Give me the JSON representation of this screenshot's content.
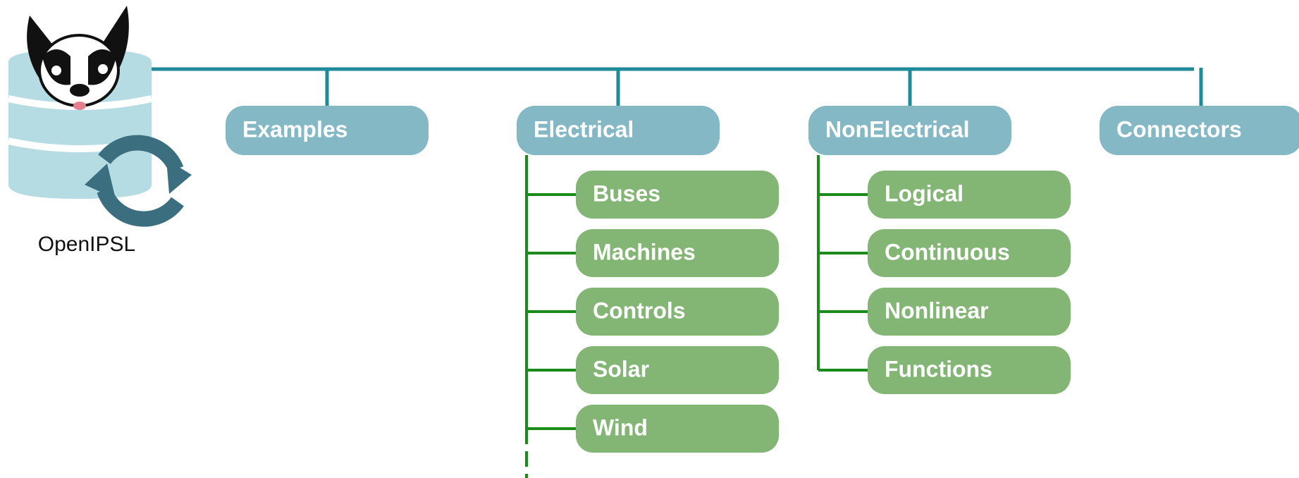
{
  "root": {
    "label": "OpenIPSL"
  },
  "nodes": [
    {
      "label": "Examples",
      "children": []
    },
    {
      "label": "Electrical",
      "children": [
        {
          "label": "Buses"
        },
        {
          "label": "Machines"
        },
        {
          "label": "Controls"
        },
        {
          "label": "Solar"
        },
        {
          "label": "Wind"
        }
      ]
    },
    {
      "label": "NonElectrical",
      "children": [
        {
          "label": "Logical"
        },
        {
          "label": "Continuous"
        },
        {
          "label": "Nonlinear"
        },
        {
          "label": "Functions"
        }
      ]
    },
    {
      "label": "Connectors",
      "children": []
    }
  ]
}
